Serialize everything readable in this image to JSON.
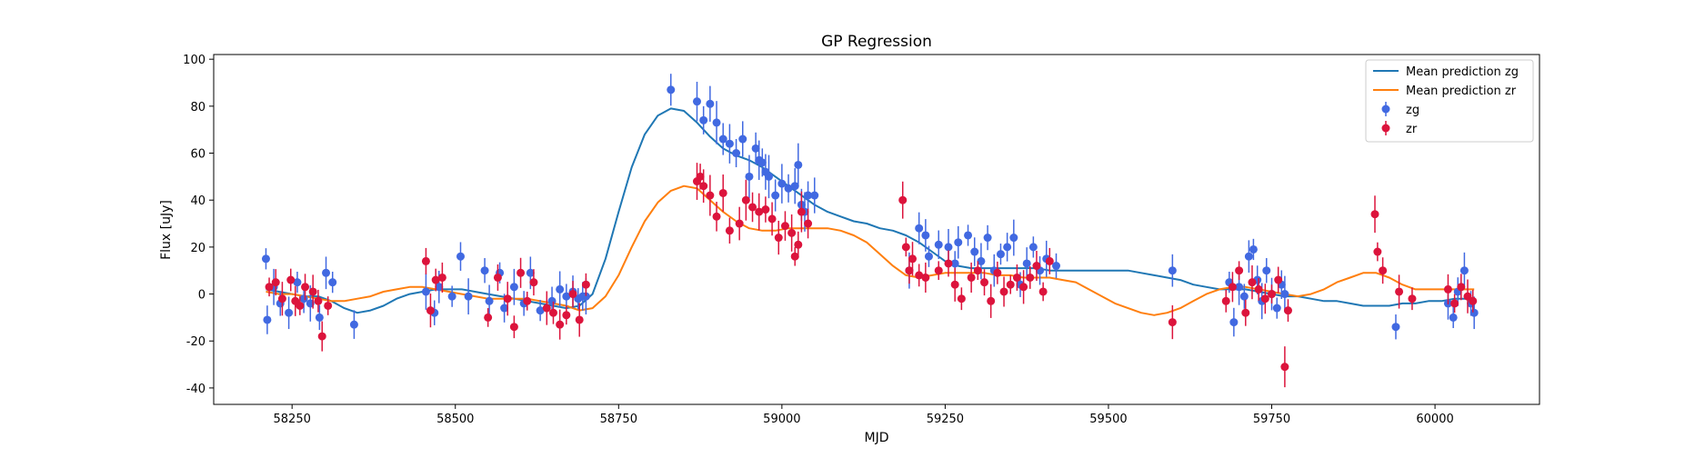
{
  "chart_data": {
    "type": "scatter",
    "title": "GP Regression",
    "xlabel": "MJD",
    "ylabel": "Flux [uJy]",
    "xlim": [
      58130,
      60160
    ],
    "ylim": [
      -47,
      102
    ],
    "xticks": [
      58250,
      58500,
      58750,
      59000,
      59250,
      59500,
      59750,
      60000
    ],
    "yticks": [
      -40,
      -20,
      0,
      20,
      40,
      60,
      80,
      100
    ],
    "grid": false,
    "legend_position": "top-right",
    "colors": {
      "mean_zg": "#1f77b4",
      "mean_zr": "#ff7f0e",
      "points_zg": "#4169e1",
      "points_zr": "#dc143c"
    },
    "lines": [
      {
        "name": "Mean prediction zg",
        "x": [
          58210,
          58230,
          58250,
          58270,
          58290,
          58310,
          58330,
          58350,
          58370,
          58390,
          58410,
          58430,
          58450,
          58470,
          58490,
          58510,
          58530,
          58550,
          58570,
          58590,
          58610,
          58630,
          58650,
          58670,
          58690,
          58710,
          58730,
          58750,
          58770,
          58790,
          58810,
          58830,
          58850,
          58870,
          58890,
          58910,
          58930,
          58950,
          58970,
          58990,
          59010,
          59030,
          59050,
          59070,
          59090,
          59110,
          59130,
          59150,
          59170,
          59190,
          59210,
          59230,
          59250,
          59270,
          59290,
          59310,
          59330,
          59350,
          59370,
          59390,
          59410,
          59430,
          59450,
          59470,
          59490,
          59510,
          59530,
          59550,
          59570,
          59590,
          59610,
          59630,
          59650,
          59670,
          59690,
          59710,
          59730,
          59750,
          59770,
          59790,
          59810,
          59830,
          59850,
          59870,
          59890,
          59910,
          59930,
          59950,
          59970,
          59990,
          60010,
          60030,
          60050,
          60060
        ],
        "y": [
          2,
          1,
          0,
          -1,
          -1,
          -3,
          -6,
          -8,
          -7,
          -5,
          -2,
          0,
          1,
          2,
          2,
          2,
          1,
          0,
          -1,
          -2,
          -3,
          -4,
          -5,
          -6,
          -5,
          0,
          15,
          35,
          54,
          68,
          76,
          79,
          78,
          73,
          67,
          62,
          59,
          57,
          54,
          50,
          46,
          42,
          38,
          35,
          33,
          31,
          30,
          28,
          27,
          25,
          22,
          18,
          14,
          12,
          11,
          11,
          11,
          11,
          11,
          11,
          10,
          10,
          10,
          10,
          10,
          10,
          10,
          9,
          8,
          7,
          6,
          4,
          3,
          2,
          2,
          2,
          1,
          0,
          -1,
          -1,
          -2,
          -3,
          -3,
          -4,
          -5,
          -5,
          -5,
          -4,
          -4,
          -3,
          -3,
          -2,
          -2,
          -2
        ]
      },
      {
        "name": "Mean prediction zr",
        "x": [
          58210,
          58230,
          58250,
          58270,
          58290,
          58310,
          58330,
          58350,
          58370,
          58390,
          58410,
          58430,
          58450,
          58470,
          58490,
          58510,
          58530,
          58550,
          58570,
          58590,
          58610,
          58630,
          58650,
          58670,
          58690,
          58710,
          58730,
          58750,
          58770,
          58790,
          58810,
          58830,
          58850,
          58870,
          58890,
          58910,
          58930,
          58950,
          58970,
          58990,
          59010,
          59030,
          59050,
          59070,
          59090,
          59110,
          59130,
          59150,
          59170,
          59190,
          59210,
          59230,
          59250,
          59270,
          59290,
          59310,
          59330,
          59350,
          59370,
          59390,
          59410,
          59430,
          59450,
          59470,
          59490,
          59510,
          59530,
          59550,
          59570,
          59590,
          59610,
          59630,
          59650,
          59670,
          59690,
          59710,
          59730,
          59750,
          59770,
          59790,
          59810,
          59830,
          59850,
          59870,
          59890,
          59910,
          59930,
          59950,
          59970,
          59990,
          60010,
          60030,
          60050,
          60060
        ],
        "y": [
          1,
          0,
          0,
          -1,
          -2,
          -3,
          -3,
          -2,
          -1,
          1,
          2,
          3,
          3,
          2,
          1,
          0,
          -1,
          -2,
          -2,
          -2,
          -2,
          -3,
          -4,
          -5,
          -7,
          -6,
          -1,
          8,
          20,
          31,
          39,
          44,
          46,
          45,
          40,
          35,
          31,
          28,
          27,
          27,
          28,
          28,
          28,
          28,
          27,
          25,
          22,
          17,
          12,
          8,
          7,
          8,
          9,
          9,
          9,
          9,
          8,
          8,
          7,
          7,
          7,
          6,
          5,
          2,
          -1,
          -4,
          -6,
          -8,
          -9,
          -8,
          -6,
          -3,
          0,
          2,
          3,
          3,
          2,
          1,
          0,
          -1,
          0,
          2,
          5,
          7,
          9,
          9,
          7,
          4,
          2,
          2,
          2,
          2,
          2,
          2
        ]
      }
    ],
    "series": [
      {
        "name": "zg",
        "x": [
          58210,
          58212,
          58222,
          58232,
          58245,
          58258,
          58268,
          58278,
          58292,
          58302,
          58312,
          58345,
          58455,
          58468,
          58475,
          58495,
          58508,
          58520,
          58545,
          58552,
          58568,
          58575,
          58590,
          58605,
          58615,
          58630,
          58648,
          58660,
          58670,
          58680,
          58688,
          58695,
          58700,
          58830,
          58870,
          58880,
          58890,
          58900,
          58910,
          58920,
          58930,
          58940,
          58950,
          58960,
          58965,
          58970,
          58975,
          58980,
          58990,
          59000,
          59010,
          59020,
          59025,
          59030,
          59035,
          59040,
          59050,
          59195,
          59210,
          59220,
          59225,
          59240,
          59255,
          59265,
          59270,
          59285,
          59295,
          59305,
          59315,
          59325,
          59335,
          59345,
          59355,
          59365,
          59375,
          59385,
          59395,
          59405,
          59420,
          59598,
          59685,
          59692,
          59700,
          59708,
          59715,
          59722,
          59728,
          59735,
          59742,
          59750,
          59758,
          59765,
          59770,
          59940,
          60020,
          60028,
          60035,
          60045,
          60055,
          60060
        ],
        "y": [
          15,
          -11,
          3,
          -4,
          -8,
          5,
          -2,
          -4,
          -10,
          9,
          5,
          -13,
          1,
          -8,
          3,
          -1,
          16,
          -1,
          10,
          -3,
          9,
          -6,
          3,
          -4,
          9,
          -7,
          -3,
          2,
          -1,
          1,
          -2,
          -1,
          -1,
          87,
          82,
          74,
          81,
          73,
          66,
          64,
          60,
          66,
          50,
          62,
          57,
          56,
          52,
          50,
          42,
          47,
          45,
          46,
          55,
          38,
          35,
          42,
          42,
          10,
          28,
          25,
          16,
          21,
          20,
          13,
          22,
          25,
          18,
          14,
          24,
          10,
          17,
          20,
          24,
          4,
          13,
          20,
          10,
          15,
          12,
          10,
          5,
          -12,
          3,
          -1,
          16,
          19,
          6,
          -3,
          10,
          0,
          -6,
          4,
          0,
          -14,
          -4,
          -10,
          1,
          10,
          -4,
          -8
        ]
      },
      {
        "name": "zr",
        "x": [
          58215,
          58225,
          58235,
          58248,
          58255,
          58262,
          58270,
          58282,
          58290,
          58296,
          58305,
          58455,
          58462,
          58470,
          58480,
          58550,
          58565,
          58580,
          58590,
          58600,
          58610,
          58620,
          58640,
          58650,
          58660,
          58670,
          58680,
          58690,
          58700,
          58870,
          58875,
          58880,
          58890,
          58900,
          58910,
          58920,
          58935,
          58945,
          58955,
          58965,
          58975,
          58985,
          58995,
          59005,
          59015,
          59020,
          59025,
          59030,
          59040,
          59185,
          59190,
          59195,
          59200,
          59210,
          59220,
          59240,
          59255,
          59265,
          59275,
          59290,
          59300,
          59310,
          59320,
          59330,
          59340,
          59350,
          59360,
          59370,
          59380,
          59390,
          59400,
          59410,
          59598,
          59680,
          59690,
          59700,
          59710,
          59720,
          59730,
          59740,
          59750,
          59760,
          59770,
          59775,
          59908,
          59912,
          59920,
          59945,
          59965,
          60020,
          60030,
          60040,
          60050,
          60058
        ],
        "y": [
          3,
          5,
          -2,
          6,
          -3,
          -5,
          3,
          1,
          -3,
          -18,
          -5,
          14,
          -7,
          6,
          7,
          -10,
          7,
          -2,
          -14,
          9,
          -3,
          5,
          -6,
          -8,
          -13,
          -9,
          0,
          -11,
          4,
          48,
          50,
          46,
          42,
          33,
          43,
          27,
          30,
          40,
          37,
          35,
          36,
          32,
          24,
          29,
          26,
          16,
          21,
          35,
          30,
          40,
          20,
          10,
          15,
          8,
          7,
          10,
          13,
          4,
          -2,
          7,
          10,
          5,
          -3,
          9,
          1,
          4,
          7,
          3,
          7,
          12,
          1,
          14,
          -12,
          -3,
          3,
          10,
          -8,
          5,
          2,
          -2,
          0,
          6,
          -31,
          -7,
          34,
          18,
          10,
          1,
          -2,
          2,
          -4,
          3,
          -1,
          -3
        ]
      }
    ]
  }
}
